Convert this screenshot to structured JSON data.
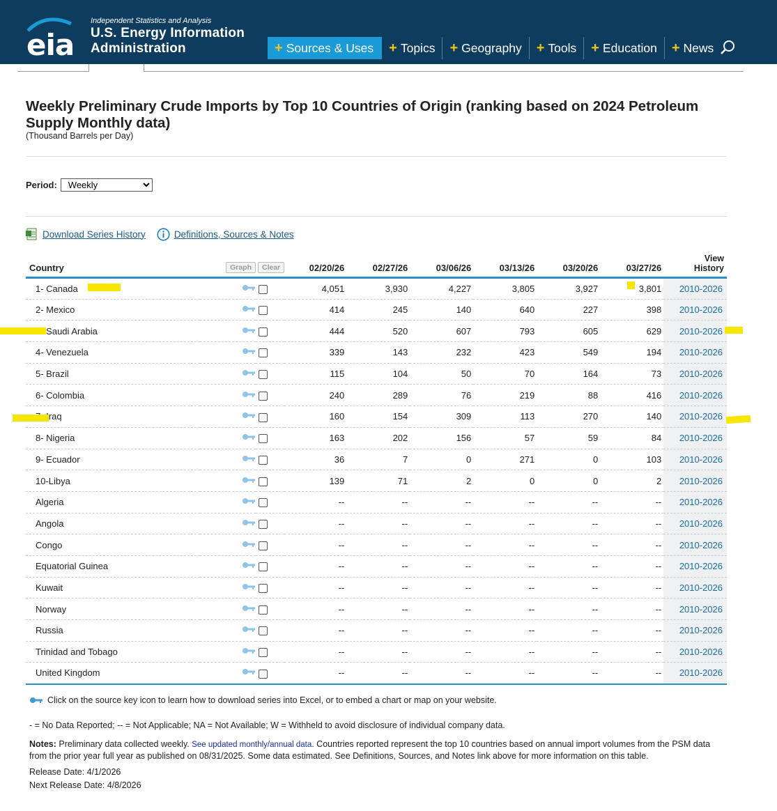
{
  "header": {
    "logo_text": "eia",
    "tagline": "Independent Statistics and Analysis",
    "org_line1": "U.S. Energy Information",
    "org_line2": "Administration",
    "nav": [
      {
        "label": "Sources & Uses",
        "active": true
      },
      {
        "label": "Topics",
        "active": false
      },
      {
        "label": "Geography",
        "active": false
      },
      {
        "label": "Tools",
        "active": false
      },
      {
        "label": "Education",
        "active": false
      },
      {
        "label": "News",
        "active": false
      }
    ]
  },
  "page": {
    "title": "Weekly Preliminary Crude Imports by Top 10 Countries of Origin (ranking based on 2024 Petroleum Supply Monthly data)",
    "subtitle": "(Thousand Barrels per Day)",
    "period_label": "Period:",
    "period_value": "Weekly",
    "download_link": "Download Series History",
    "definitions_link": "Definitions, Sources & Notes"
  },
  "table": {
    "country_header": "Country",
    "graph_button": "Graph",
    "clear_button": "Clear",
    "dates": [
      "02/20/26",
      "02/27/26",
      "03/06/26",
      "03/13/26",
      "03/20/26",
      "03/27/26"
    ],
    "history_header_line1": "View",
    "history_header_line2": "History",
    "rows": [
      {
        "country": "1- Canada",
        "values": [
          "4,051",
          "3,930",
          "4,227",
          "3,805",
          "3,927",
          "3,801"
        ],
        "history": "2010-2026"
      },
      {
        "country": "2- Mexico",
        "values": [
          "414",
          "245",
          "140",
          "640",
          "227",
          "398"
        ],
        "history": "2010-2026"
      },
      {
        "country": "3- Saudi Arabia",
        "values": [
          "444",
          "520",
          "607",
          "793",
          "605",
          "629"
        ],
        "history": "2010-2026"
      },
      {
        "country": "4- Venezuela",
        "values": [
          "339",
          "143",
          "232",
          "423",
          "549",
          "194"
        ],
        "history": "2010-2026"
      },
      {
        "country": "5- Brazil",
        "values": [
          "115",
          "104",
          "50",
          "70",
          "164",
          "73"
        ],
        "history": "2010-2026"
      },
      {
        "country": "6- Colombia",
        "values": [
          "240",
          "289",
          "76",
          "219",
          "88",
          "416"
        ],
        "history": "2010-2026"
      },
      {
        "country": "7- Iraq",
        "values": [
          "160",
          "154",
          "309",
          "113",
          "270",
          "140"
        ],
        "history": "2010-2026"
      },
      {
        "country": "8- Nigeria",
        "values": [
          "163",
          "202",
          "156",
          "57",
          "59",
          "84"
        ],
        "history": "2010-2026"
      },
      {
        "country": "9- Ecuador",
        "values": [
          "36",
          "7",
          "0",
          "271",
          "0",
          "103"
        ],
        "history": "2010-2026"
      },
      {
        "country": "10-Libya",
        "values": [
          "139",
          "71",
          "2",
          "0",
          "0",
          "2"
        ],
        "history": "2010-2026"
      },
      {
        "country": "Algeria",
        "values": [
          "--",
          "--",
          "--",
          "--",
          "--",
          "--"
        ],
        "history": "2010-2026"
      },
      {
        "country": "Angola",
        "values": [
          "--",
          "--",
          "--",
          "--",
          "--",
          "--"
        ],
        "history": "2010-2026"
      },
      {
        "country": "Congo",
        "values": [
          "--",
          "--",
          "--",
          "--",
          "--",
          "--"
        ],
        "history": "2010-2026"
      },
      {
        "country": "Equatorial Guinea",
        "values": [
          "--",
          "--",
          "--",
          "--",
          "--",
          "--"
        ],
        "history": "2010-2026"
      },
      {
        "country": "Kuwait",
        "values": [
          "--",
          "--",
          "--",
          "--",
          "--",
          "--"
        ],
        "history": "2010-2026"
      },
      {
        "country": "Norway",
        "values": [
          "--",
          "--",
          "--",
          "--",
          "--",
          "--"
        ],
        "history": "2010-2026"
      },
      {
        "country": "Russia",
        "values": [
          "--",
          "--",
          "--",
          "--",
          "--",
          "--"
        ],
        "history": "2010-2026"
      },
      {
        "country": "Trinidad and Tobago",
        "values": [
          "--",
          "--",
          "--",
          "--",
          "--",
          "--"
        ],
        "history": "2010-2026"
      },
      {
        "country": "United Kingdom",
        "values": [
          "--",
          "--",
          "--",
          "--",
          "--",
          "--"
        ],
        "history": "2010-2026"
      }
    ]
  },
  "footer": {
    "key_note": "Click on the source key icon to learn how to download series into Excel, or to embed a chart or map on your website.",
    "legend": "- = No Data Reported;  -- = Not Applicable;  NA = Not Available;  W = Withheld to avoid disclosure of individual company data.",
    "notes_label": "Notes:",
    "notes_pre": "Preliminary data collected weekly.",
    "notes_link": "See updated monthly/annual data",
    "notes_post": ". Countries reported represent the top 10 countries based on annual import volumes from the PSM data from the prior year full year as published on 08/31/2025. Some data estimated.  See Definitions, Sources, and Notes link above for more information on this table.",
    "release_date": "Release Date: 4/1/2026",
    "next_release_date": "Next Release Date: 4/8/2026"
  },
  "colors": {
    "header_bg": "#0d3c5e",
    "nav_active": "#1a9bd7",
    "plus": "#f2c418",
    "table_rule": "#2a8fc9",
    "highlight": "#f7e600"
  }
}
